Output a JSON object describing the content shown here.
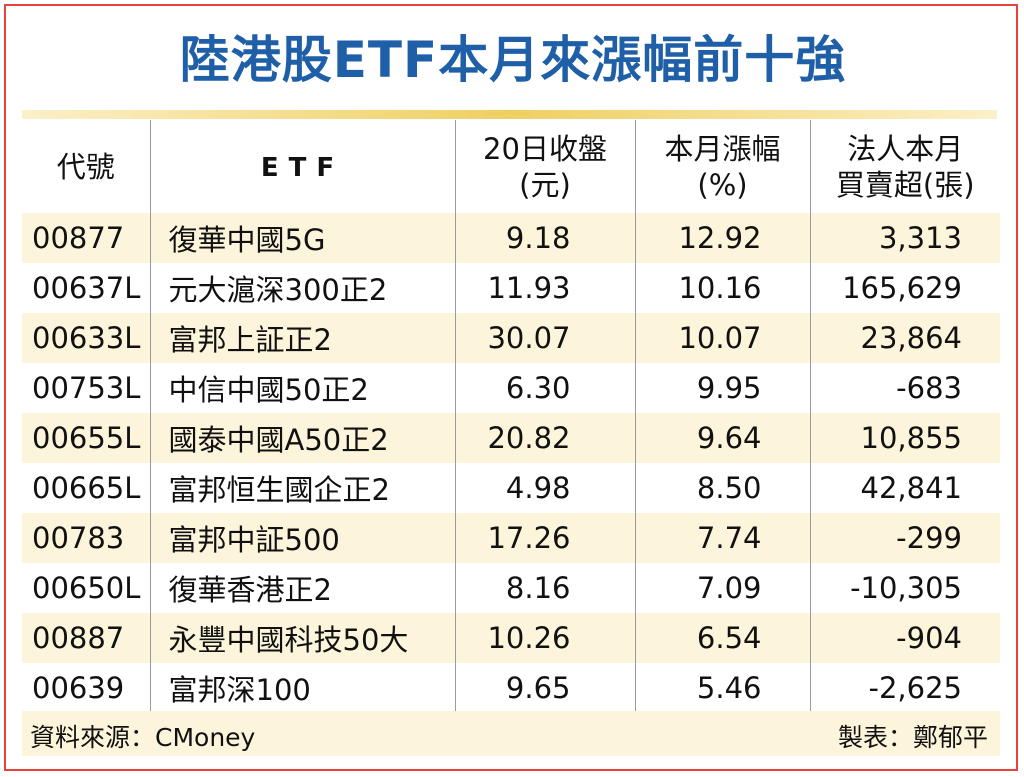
{
  "title": "陸港股ETF本月來漲幅前十強",
  "header": {
    "code": "代號",
    "etf": "ETF",
    "close_line1": "20日收盤",
    "close_line2": "(元)",
    "change_line1": "本月漲幅",
    "change_line2": "(%)",
    "net_line1": "法人本月",
    "net_line2": "買賣超(張)"
  },
  "colors": {
    "title": "#1f5fa8",
    "stripe": "#fdf5db",
    "border": "#e8423a",
    "rule": "#f0cf62"
  },
  "chart_data": {
    "type": "table",
    "title": "陸港股ETF本月來漲幅前十強",
    "columns": [
      "代號",
      "ETF",
      "20日收盤(元)",
      "本月漲幅(%)",
      "法人本月買賣超(張)"
    ],
    "rows": [
      [
        "00877",
        "復華中國5G",
        "9.18",
        "12.92",
        "3,313"
      ],
      [
        "00637L",
        "元大滬深300正2",
        "11.93",
        "10.16",
        "165,629"
      ],
      [
        "00633L",
        "富邦上証正2",
        "30.07",
        "10.07",
        "23,864"
      ],
      [
        "00753L",
        "中信中國50正2",
        "6.30",
        "9.95",
        "-683"
      ],
      [
        "00655L",
        "國泰中國A50正2",
        "20.82",
        "9.64",
        "10,855"
      ],
      [
        "00665L",
        "富邦恒生國企正2",
        "4.98",
        "8.50",
        "42,841"
      ],
      [
        "00783",
        "富邦中証500",
        "17.26",
        "7.74",
        "-299"
      ],
      [
        "00650L",
        "復華香港正2",
        "8.16",
        "7.09",
        "-10,305"
      ],
      [
        "00887",
        "永豐中國科技50大",
        "10.26",
        "6.54",
        "-904"
      ],
      [
        "00639",
        "富邦深100",
        "9.65",
        "5.46",
        "-2,625"
      ]
    ]
  },
  "footer": {
    "source": "資料來源：CMoney",
    "maker": "製表：鄭郁平"
  }
}
